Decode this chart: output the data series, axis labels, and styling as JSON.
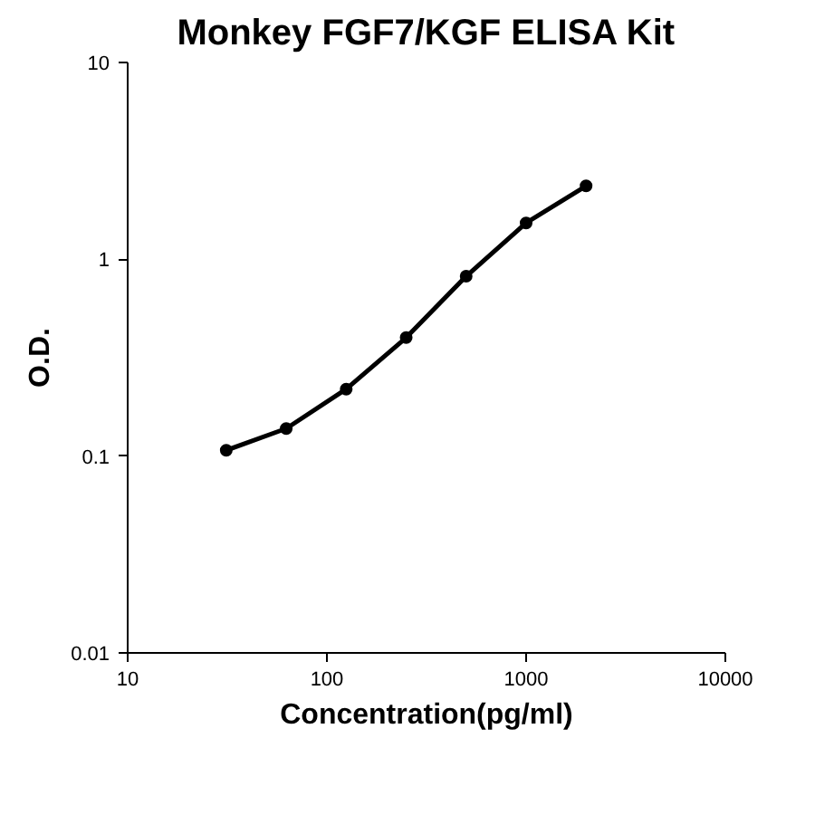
{
  "chart_data": {
    "type": "line",
    "title": "Monkey FGF7/KGF ELISA Kit",
    "xlabel": "Concentration(pg/ml)",
    "ylabel": "O.D.",
    "x": [
      31.25,
      62.5,
      125,
      250,
      500,
      1000,
      2000
    ],
    "series": [
      {
        "color": "#000000",
        "values": [
          0.107,
          0.138,
          0.219,
          0.4,
          0.82,
          1.53,
          2.36
        ]
      }
    ],
    "log": "xy",
    "xlim": [
      10,
      10000
    ],
    "ylim": [
      0.01,
      10
    ],
    "xticks": [
      10,
      100,
      1000,
      10000
    ],
    "yticks": [
      0.01,
      0.1,
      1,
      10
    ],
    "grid": false,
    "marker": "circle",
    "line_style": "solid"
  }
}
